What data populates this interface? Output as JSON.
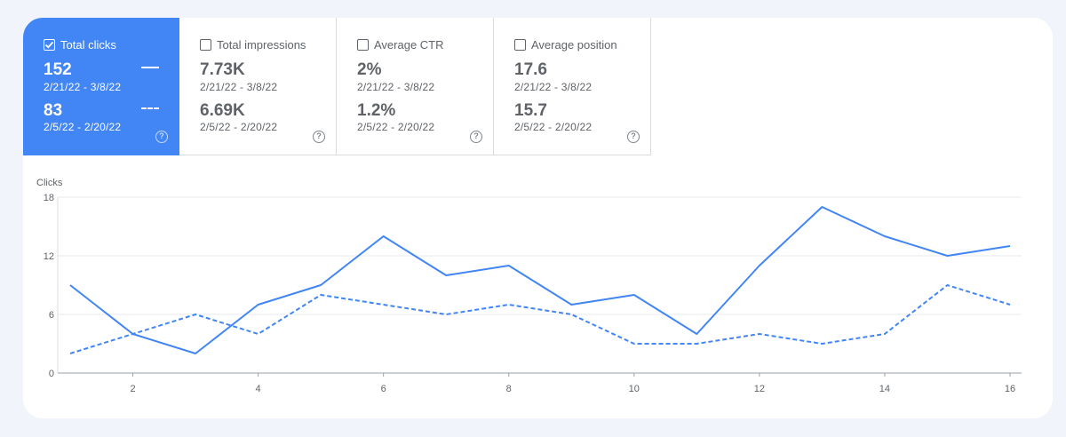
{
  "metrics": [
    {
      "label": "Total clicks",
      "current_value": "152",
      "current_range": "2/21/22 - 3/8/22",
      "previous_value": "83",
      "previous_range": "2/5/22 - 2/20/22",
      "checked": true
    },
    {
      "label": "Total impressions",
      "current_value": "7.73K",
      "current_range": "2/21/22 - 3/8/22",
      "previous_value": "6.69K",
      "previous_range": "2/5/22 - 2/20/22",
      "checked": false
    },
    {
      "label": "Average CTR",
      "current_value": "2%",
      "current_range": "2/21/22 - 3/8/22",
      "previous_value": "1.2%",
      "previous_range": "2/5/22 - 2/20/22",
      "checked": false
    },
    {
      "label": "Average position",
      "current_value": "17.6",
      "current_range": "2/21/22 - 3/8/22",
      "previous_value": "15.7",
      "previous_range": "2/5/22 - 2/20/22",
      "checked": false
    }
  ],
  "help_glyph": "?",
  "colors": {
    "accent": "#4285f4",
    "page_bg": "#f1f4fb",
    "grid": "#e8eaed"
  },
  "chart_data": {
    "type": "line",
    "ylabel": "Clicks",
    "ylim": [
      0,
      18
    ],
    "yticks": [
      0,
      6,
      12,
      18
    ],
    "xticks": [
      2,
      4,
      6,
      8,
      10,
      12,
      14,
      16
    ],
    "xlim": [
      1,
      16
    ],
    "x": [
      1,
      2,
      3,
      4,
      5,
      6,
      7,
      8,
      9,
      10,
      11,
      12,
      13,
      14,
      15,
      16
    ],
    "series": [
      {
        "style": "solid",
        "values": [
          9,
          4,
          2,
          7,
          9,
          14,
          10,
          11,
          7,
          8,
          4,
          11,
          17,
          14,
          12,
          13
        ]
      },
      {
        "style": "dashed",
        "values": [
          2,
          4,
          6,
          4,
          8,
          7,
          6,
          7,
          6,
          3,
          3,
          4,
          3,
          4,
          9,
          7
        ]
      }
    ],
    "grid": true
  }
}
